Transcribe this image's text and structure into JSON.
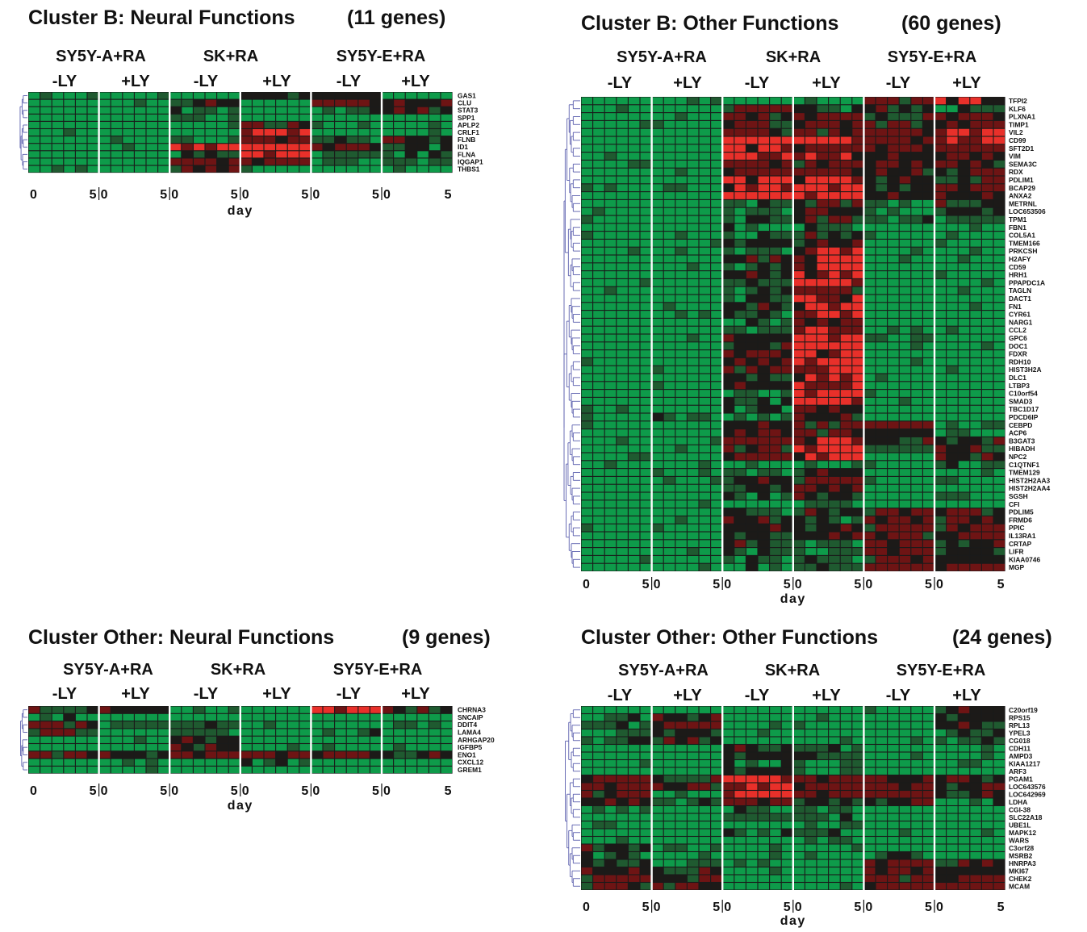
{
  "palette": {
    "low": "#0e9b4a",
    "low_dark": "#1f5a30",
    "neutral": "#1c1a18",
    "high_dark": "#6e1414",
    "high": "#e8302a",
    "grid": "#1a1a1a",
    "separator": "#ffffff",
    "dendrogram": "#5b5fae"
  },
  "chart_data": [
    {
      "type": "heatmap",
      "title_parts": [
        "Cluster B: Neural Functions",
        "(11 genes)"
      ],
      "groups": [
        "SY5Y-A+RA",
        "SK+RA",
        "SY5Y-E+RA"
      ],
      "conditions": [
        "-LY",
        "+LY",
        "-LY",
        "+LY",
        "-LY",
        "+LY"
      ],
      "day_ticks": [
        "0",
        "5",
        "0",
        "5",
        "0",
        "5",
        "0",
        "5",
        "0",
        "5",
        "0",
        "5"
      ],
      "xlabel": "day",
      "columns_per_block": 6,
      "value_range": [
        -2,
        2
      ],
      "genes": [
        "GAS1",
        "CLU",
        "STAT3",
        "SPP1",
        "APLP2",
        "CRLF1",
        "FLNB",
        "ID1",
        "FLNA",
        "IQGAP1",
        "THBS1"
      ],
      "block_levels": {
        "GAS1": [
          -2,
          -2,
          -2,
          0,
          0,
          -2
        ],
        "CLU": [
          -2,
          -2,
          0,
          -2,
          1,
          1
        ],
        "STAT3": [
          -2,
          -2,
          -1,
          -2,
          -1,
          0
        ],
        "SPP1": [
          -2,
          -2,
          -1,
          -2,
          -2,
          -2
        ],
        "APLP2": [
          -2,
          -2,
          -2,
          1,
          -2,
          -2
        ],
        "CRLF1": [
          -2,
          -2,
          -2,
          2,
          -2,
          -2
        ],
        "FLNB": [
          -2,
          -2,
          -1,
          1,
          -1,
          0
        ],
        "ID1": [
          -2,
          -2,
          2,
          2,
          1,
          -1
        ],
        "FLNA": [
          -2,
          -2,
          -1,
          2,
          -1,
          -1
        ],
        "IQGAP1": [
          -2,
          -2,
          1,
          1,
          -1,
          -1
        ],
        "THBS1": [
          -2,
          -2,
          0,
          -2,
          -2,
          -2
        ]
      }
    },
    {
      "type": "heatmap",
      "title_parts": [
        "Cluster B: Other Functions",
        "(60 genes)"
      ],
      "groups": [
        "SY5Y-A+RA",
        "SK+RA",
        "SY5Y-E+RA"
      ],
      "conditions": [
        "-LY",
        "+LY",
        "-LY",
        "+LY",
        "-LY",
        "+LY"
      ],
      "day_ticks": [
        "0",
        "5",
        "0",
        "5",
        "0",
        "5",
        "0",
        "5",
        "0",
        "5",
        "0",
        "5"
      ],
      "xlabel": "day",
      "columns_per_block": 6,
      "value_range": [
        -2,
        2
      ],
      "genes": [
        "TFPI2",
        "KLF6",
        "PLXNA1",
        "TIMP1",
        "VIL2",
        "CD99",
        "SFT2D1",
        "VIM",
        "SEMA3C",
        "RDX",
        "PDLIM1",
        "BCAP29",
        "ANXA2",
        "METRNL",
        "LOC653506",
        "TPM1",
        "FBN1",
        "COL5A1",
        "TMEM166",
        "PRKCSH",
        "H2AFY",
        "CD59",
        "HRH1",
        "PPAPDC1A",
        "TAGLN",
        "DACT1",
        "FN1",
        "CYR61",
        "NARG1",
        "CCL2",
        "GPC6",
        "DOC1",
        "FDXR",
        "RDH10",
        "HIST3H2A",
        "DLC1",
        "LTBP3",
        "C10orf54",
        "SMAD3",
        "TBC1D17",
        "PDCD6IP",
        "CEBPD",
        "ACP6",
        "B3GAT3",
        "HIBADH",
        "NPC2",
        "C1QTNF1",
        "TMEM129",
        "HIST2H2AA3",
        "HIST2H2AA4",
        "SGSH",
        "CFI",
        "PDLIM5",
        "FRMD6",
        "PPIC",
        "IL13RA1",
        "CRTAP",
        "LIFR",
        "KIAA0746",
        "MGP"
      ],
      "block_levels": {
        "TFPI2": [
          -2,
          -2,
          -2,
          -2,
          1,
          2
        ],
        "KLF6": [
          -2,
          -2,
          1,
          -1,
          0,
          -1
        ],
        "PLXNA1": [
          -2,
          -2,
          0,
          1,
          0,
          1
        ],
        "TIMP1": [
          -2,
          -2,
          1,
          1,
          1,
          1
        ],
        "VIL2": [
          -2,
          -2,
          1,
          1,
          1,
          2
        ],
        "CD99": [
          -2,
          -2,
          2,
          2,
          1,
          2
        ],
        "SFT2D1": [
          -2,
          -2,
          2,
          1,
          1,
          1
        ],
        "VIM": [
          -2,
          -2,
          2,
          2,
          1,
          1
        ],
        "SEMA3C": [
          -2,
          -2,
          1,
          1,
          1,
          1
        ],
        "RDX": [
          -2,
          -2,
          1,
          1,
          0,
          1
        ],
        "PDLIM1": [
          -2,
          -2,
          2,
          2,
          0,
          0
        ],
        "BCAP29": [
          -2,
          -2,
          2,
          2,
          0,
          1
        ],
        "ANXA2": [
          -2,
          -2,
          2,
          2,
          0,
          0
        ],
        "METRNL": [
          -2,
          -2,
          -1,
          1,
          -1,
          0
        ],
        "LOC653506": [
          -2,
          -2,
          -1,
          1,
          -1,
          0
        ],
        "TPM1": [
          -2,
          -2,
          -1,
          1,
          -1,
          -1
        ],
        "FBN1": [
          -2,
          -2,
          -1,
          -1,
          -2,
          -2
        ],
        "COL5A1": [
          -2,
          -2,
          -1,
          0,
          -2,
          -2
        ],
        "TMEM166": [
          -2,
          -2,
          0,
          1,
          -2,
          -2
        ],
        "PRKCSH": [
          -2,
          -2,
          -1,
          2,
          -2,
          -2
        ],
        "H2AFY": [
          -2,
          -2,
          0,
          2,
          -2,
          -2
        ],
        "CD59": [
          -2,
          -2,
          -1,
          2,
          -2,
          -2
        ],
        "HRH1": [
          -2,
          -2,
          0,
          2,
          -2,
          -2
        ],
        "PPAPDC1A": [
          -2,
          -2,
          -1,
          2,
          -2,
          -2
        ],
        "TAGLN": [
          -2,
          -2,
          -1,
          1,
          -2,
          -2
        ],
        "DACT1": [
          -2,
          -2,
          -1,
          2,
          -2,
          -2
        ],
        "FN1": [
          -2,
          -2,
          0,
          2,
          -2,
          -2
        ],
        "CYR61": [
          -2,
          -2,
          -1,
          2,
          -2,
          -2
        ],
        "NARG1": [
          -2,
          -2,
          -1,
          1,
          -2,
          -2
        ],
        "CCL2": [
          -2,
          -2,
          -1,
          2,
          -1,
          -2
        ],
        "GPC6": [
          -2,
          -2,
          0,
          2,
          -1,
          -2
        ],
        "DOC1": [
          -2,
          -2,
          0,
          2,
          -2,
          -2
        ],
        "FDXR": [
          -2,
          -2,
          1,
          2,
          -2,
          -2
        ],
        "RDH10": [
          -2,
          -2,
          1,
          2,
          -2,
          -2
        ],
        "HIST3H2A": [
          -2,
          -2,
          1,
          2,
          -2,
          -2
        ],
        "DLC1": [
          -2,
          -2,
          0,
          2,
          -2,
          -2
        ],
        "LTBP3": [
          -2,
          -2,
          0,
          2,
          -2,
          -2
        ],
        "C10orf54": [
          -2,
          -2,
          -1,
          2,
          -2,
          -2
        ],
        "SMAD3": [
          -2,
          -2,
          -1,
          2,
          -2,
          -2
        ],
        "TBC1D17": [
          -2,
          -2,
          -1,
          1,
          -2,
          -2
        ],
        "PDCD6IP": [
          -2,
          -1,
          -1,
          1,
          -2,
          -2
        ],
        "CEBPD": [
          -2,
          -2,
          0,
          1,
          1,
          -1
        ],
        "ACP6": [
          -2,
          -2,
          1,
          1,
          0,
          -1
        ],
        "B3GAT3": [
          -2,
          -2,
          1,
          2,
          0,
          0
        ],
        "HIBADH": [
          -2,
          -2,
          1,
          2,
          -1,
          0
        ],
        "NPC2": [
          -2,
          -2,
          1,
          2,
          -2,
          0
        ],
        "C1QTNF1": [
          -2,
          -2,
          -2,
          -1,
          -2,
          -1
        ],
        "TMEM129": [
          -2,
          -2,
          -1,
          0,
          -2,
          -2
        ],
        "HIST2H2AA3": [
          -2,
          -2,
          0,
          1,
          -2,
          -2
        ],
        "HIST2H2AA4": [
          -2,
          -2,
          0,
          1,
          -2,
          -2
        ],
        "SGSH": [
          -2,
          -2,
          -1,
          0,
          -2,
          -2
        ],
        "CFI": [
          -2,
          -2,
          -2,
          -1,
          -2,
          -2
        ],
        "PDLIM5": [
          -2,
          -2,
          -1,
          0,
          1,
          1
        ],
        "FRMD6": [
          -2,
          -2,
          0,
          -1,
          1,
          1
        ],
        "PPIC": [
          -2,
          -2,
          0,
          0,
          1,
          1
        ],
        "IL13RA1": [
          -2,
          -2,
          0,
          0,
          1,
          1
        ],
        "CRTAP": [
          -2,
          -2,
          0,
          -1,
          1,
          0
        ],
        "LIFR": [
          -2,
          -2,
          -1,
          -1,
          1,
          0
        ],
        "KIAA0746": [
          -2,
          -2,
          -1,
          -1,
          1,
          0
        ],
        "MGP": [
          -2,
          -2,
          -1,
          -1,
          1,
          1
        ]
      }
    },
    {
      "type": "heatmap",
      "title_parts": [
        "Cluster Other: Neural Functions",
        "(9 genes)"
      ],
      "groups": [
        "SY5Y-A+RA",
        "SK+RA",
        "SY5Y-E+RA"
      ],
      "conditions": [
        "-LY",
        "+LY",
        "-LY",
        "+LY",
        "-LY",
        "+LY"
      ],
      "day_ticks": [
        "0",
        "5",
        "0",
        "5",
        "0",
        "5",
        "0",
        "5",
        "0",
        "5",
        "0",
        "5"
      ],
      "xlabel": "day",
      "columns_per_block": 6,
      "value_range": [
        -2,
        2
      ],
      "genes": [
        "CHRNA3",
        "SNCAIP",
        "DDIT4",
        "LAMA4",
        "ARHGAP20",
        "IGFBP5",
        "ENO1",
        "CXCL12",
        "GREM1"
      ],
      "block_levels": {
        "CHRNA3": [
          0,
          0,
          -2,
          -2,
          2,
          1
        ],
        "SNCAIP": [
          -1,
          -2,
          -2,
          -2,
          -2,
          -2
        ],
        "DDIT4": [
          1,
          -1,
          -1,
          -2,
          -2,
          -1
        ],
        "LAMA4": [
          0,
          -2,
          -1,
          -2,
          -1,
          -2
        ],
        "ARHGAP20": [
          -2,
          -2,
          0,
          -2,
          -2,
          -2
        ],
        "IGFBP5": [
          -2,
          -2,
          0,
          -2,
          -2,
          -2
        ],
        "ENO1": [
          1,
          0,
          1,
          1,
          1,
          0
        ],
        "CXCL12": [
          -2,
          -2,
          -2,
          -1,
          -2,
          -2
        ],
        "GREM1": [
          -2,
          -2,
          -2,
          -2,
          -2,
          -2
        ]
      }
    },
    {
      "type": "heatmap",
      "title_parts": [
        "Cluster Other: Other Functions",
        "(24 genes)"
      ],
      "groups": [
        "SY5Y-A+RA",
        "SK+RA",
        "SY5Y-E+RA"
      ],
      "conditions": [
        "-LY",
        "+LY",
        "-LY",
        "+LY",
        "-LY",
        "+LY"
      ],
      "day_ticks": [
        "0",
        "5",
        "0",
        "5",
        "0",
        "5",
        "0",
        "5",
        "0",
        "5",
        "0",
        "5"
      ],
      "xlabel": "day",
      "columns_per_block": 6,
      "value_range": [
        -2,
        2
      ],
      "genes": [
        "C20orf19",
        "RPS15",
        "RPL13",
        "YPEL3",
        "CG018",
        "CDH11",
        "AMPD3",
        "KIAA1217",
        "ARF3",
        "PGAM1",
        "LOC643576",
        "LOC642969",
        "LDHA",
        "CGI-38",
        "SLC22A18",
        "UBE1L",
        "MAPK12",
        "WARS",
        "C3orf28",
        "MSRB2",
        "HNRPA3",
        "MKI67",
        "CHEK2",
        "MCAM"
      ],
      "block_levels": {
        "C20orf19": [
          -2,
          -2,
          -2,
          -2,
          -2,
          0
        ],
        "RPS15": [
          -1,
          1,
          -2,
          -2,
          -2,
          0
        ],
        "RPL13": [
          -1,
          1,
          -2,
          -2,
          -2,
          0
        ],
        "YPEL3": [
          -1,
          0,
          -2,
          -2,
          -2,
          -1
        ],
        "CG018": [
          -1,
          0,
          -2,
          -2,
          -2,
          -1
        ],
        "CDH11": [
          -2,
          -2,
          0,
          -1,
          -2,
          -2
        ],
        "AMPD3": [
          -2,
          -2,
          0,
          -1,
          -2,
          -2
        ],
        "KIAA1217": [
          -2,
          -2,
          -1,
          -1,
          -2,
          -2
        ],
        "ARF3": [
          -2,
          -2,
          0,
          -1,
          -2,
          -2
        ],
        "PGAM1": [
          1,
          0,
          2,
          1,
          1,
          0
        ],
        "LOC643576": [
          1,
          0,
          2,
          1,
          1,
          0
        ],
        "LOC642969": [
          1,
          -1,
          2,
          1,
          1,
          0
        ],
        "LDHA": [
          0,
          -1,
          1,
          0,
          0,
          -1
        ],
        "CGI-38": [
          -2,
          -2,
          -1,
          -1,
          -2,
          -2
        ],
        "SLC22A18": [
          -2,
          -2,
          -1,
          -1,
          -2,
          -2
        ],
        "UBE1L": [
          -2,
          -2,
          -2,
          -1,
          -2,
          -2
        ],
        "MAPK12": [
          -2,
          -2,
          -1,
          -1,
          -2,
          -2
        ],
        "WARS": [
          -2,
          -2,
          -2,
          -1,
          -2,
          -2
        ],
        "C3orf28": [
          0,
          -1,
          -2,
          -2,
          -2,
          -2
        ],
        "MSRB2": [
          -1,
          -2,
          -2,
          -2,
          -1,
          -2
        ],
        "HNRPA3": [
          0,
          -1,
          -2,
          -2,
          1,
          0
        ],
        "MKI67": [
          1,
          0,
          -2,
          -2,
          1,
          0
        ],
        "CHEK2": [
          1,
          0,
          -2,
          -2,
          1,
          1
        ],
        "MCAM": [
          1,
          1,
          -2,
          -2,
          1,
          1
        ]
      }
    }
  ]
}
